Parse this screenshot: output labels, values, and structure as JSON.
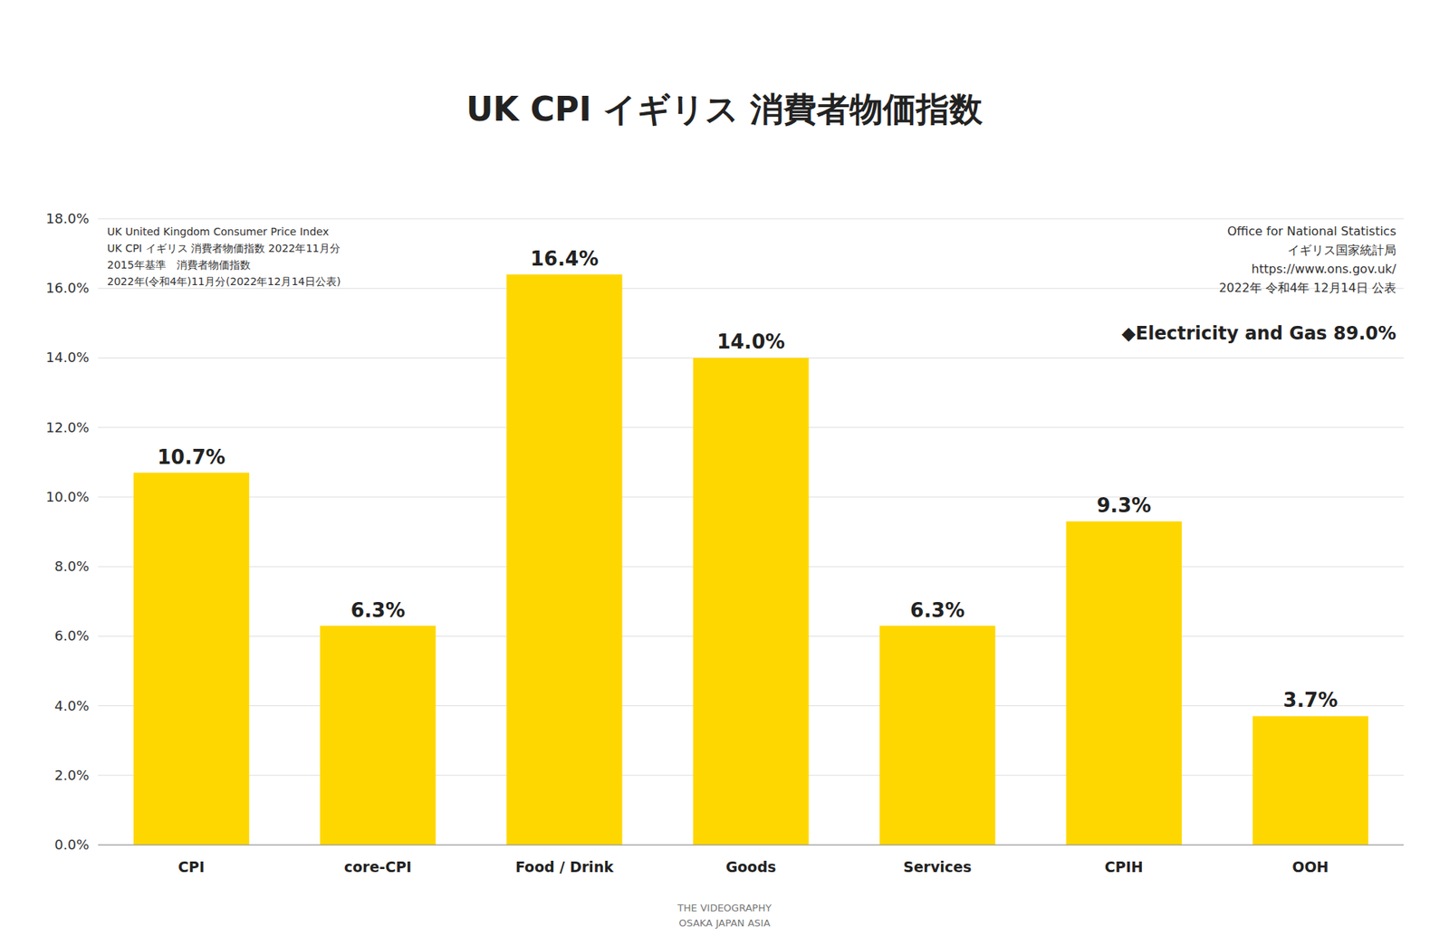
{
  "chart_data": {
    "type": "bar",
    "title": "UK CPI イギリス 消費者物価指数",
    "categories": [
      "CPI",
      "core-CPI",
      "Food / Drink",
      "Goods",
      "Services",
      "CPIH",
      "OOH"
    ],
    "values": [
      10.7,
      6.3,
      16.4,
      14.0,
      6.3,
      9.3,
      3.7
    ],
    "value_labels": [
      "10.7%",
      "6.3%",
      "16.4%",
      "14.0%",
      "6.3%",
      "9.3%",
      "3.7%"
    ],
    "data_labels": true,
    "color": "#FFD700",
    "ylim": [
      0,
      18
    ],
    "yticks": [
      {
        "value": 0,
        "label": "0.0%"
      },
      {
        "value": 2,
        "label": "2.0%"
      },
      {
        "value": 4,
        "label": "4.0%"
      },
      {
        "value": 6,
        "label": "6.0%"
      },
      {
        "value": 8,
        "label": "8.0%"
      },
      {
        "value": 10,
        "label": "10.0%"
      },
      {
        "value": 12,
        "label": "12.0%"
      },
      {
        "value": 14,
        "label": "14.0%"
      },
      {
        "value": 16,
        "label": "16.0%"
      },
      {
        "value": 18,
        "label": "18.0%"
      }
    ],
    "grid": true,
    "annotations": [
      "UK United Kingdom Consumer Price Index",
      "UK CPI イギリス 消費者物価指数 2022年11月分",
      "2015年基準　消費者物価指数",
      "2022年(令和4年)11月分(2022年12月14日公表)",
      "Office for National Statistics",
      "イギリス国家統計局",
      "https://www.ons.gov.uk/",
      "2022年 令和4年 12月14日 公表",
      "◆Electricity and Gas 89.0%",
      "THE VIDEOGRAPHY",
      "OSAKA JAPAN ASIA"
    ]
  }
}
